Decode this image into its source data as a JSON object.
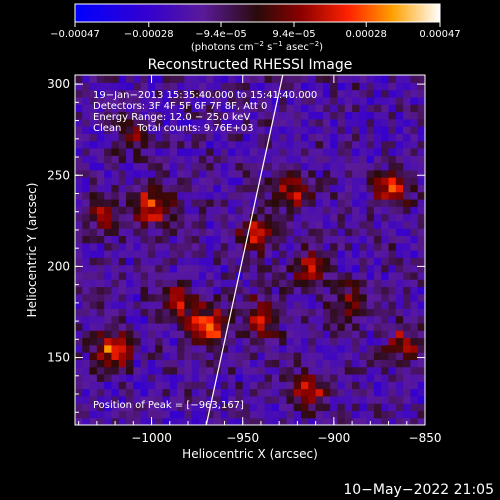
{
  "chart_data": {
    "type": "heatmap",
    "title": "Reconstructed RHESSI Image",
    "xlabel": "Heliocentric X (arcsec)",
    "ylabel": "Heliocentric Y (arcsec)",
    "xlim": [
      -1042,
      -850
    ],
    "ylim": [
      113,
      305
    ],
    "xticks": [
      -1000,
      -950,
      -900,
      -850
    ],
    "xtick_labels": [
      "−1000",
      "−950",
      "−900",
      "−850"
    ],
    "yticks": [
      150,
      200,
      250,
      300
    ],
    "ytick_labels": [
      "150",
      "200",
      "250",
      "300"
    ],
    "colorbar": {
      "range": [
        -0.00047,
        0.00047
      ],
      "ticks": [
        -0.00047,
        -0.00028,
        -9.4e-05,
        9.4e-05,
        0.00028,
        0.00047
      ],
      "tick_labels": [
        "−0.00047",
        "−0.00028",
        "−9.4e−05",
        "9.4e−05",
        "0.00028",
        "0.00047"
      ],
      "label_parts": [
        "(photons cm",
        "−2",
        " s",
        "−1",
        " asec",
        "−2",
        ")"
      ]
    },
    "info_lines": [
      "19−Jan−2013 15:35:40.000 to 15:41:40.000",
      "Detectors: 3F 4F 5F 6F 7F 8F, Att 0",
      "Energy Range: 12.0 − 25.0 keV",
      "Clean     Total counts: 9.76E+03"
    ],
    "peak_label": "Position of Peak = [−963,167]",
    "peak": [
      -963,
      167
    ],
    "limb_line": [
      [
        -970,
        113
      ],
      [
        -928,
        305
      ]
    ],
    "hotspots": [
      {
        "x": -969,
        "y": 167,
        "peak": 0.00047
      },
      {
        "x": -1022,
        "y": 155,
        "peak": 0.0004
      },
      {
        "x": -1000,
        "y": 233,
        "peak": 0.00038
      },
      {
        "x": -943,
        "y": 218,
        "peak": 0.0003
      },
      {
        "x": -922,
        "y": 242,
        "peak": 0.00032
      },
      {
        "x": -868,
        "y": 243,
        "peak": 0.00034
      },
      {
        "x": -913,
        "y": 198,
        "peak": 0.0003
      },
      {
        "x": -890,
        "y": 180,
        "peak": 0.00028
      },
      {
        "x": -940,
        "y": 172,
        "peak": 0.0003
      },
      {
        "x": -985,
        "y": 180,
        "peak": 0.0003
      },
      {
        "x": -913,
        "y": 132,
        "peak": 0.00032
      },
      {
        "x": -862,
        "y": 158,
        "peak": 0.00026
      },
      {
        "x": -1010,
        "y": 272,
        "peak": 0.0002
      },
      {
        "x": -1027,
        "y": 230,
        "peak": 0.00024
      }
    ]
  },
  "footer": {
    "timestamp": "10−May−2022 21:05"
  }
}
